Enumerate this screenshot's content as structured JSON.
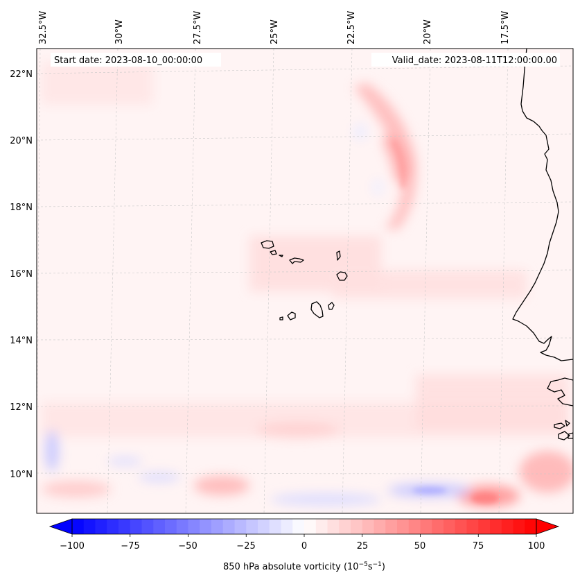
{
  "map": {
    "start_label": "Start date: 2023-08-10_00:00:00",
    "valid_label": "Valid_date: 2023-08-11T12:00:00.00",
    "lon_labels": [
      "32.5°W",
      "30°W",
      "27.5°W",
      "25°W",
      "22.5°W",
      "20°W",
      "17.5°W"
    ],
    "lat_labels": [
      "22°N",
      "20°N",
      "18°N",
      "16°N",
      "14°N",
      "12°N",
      "10°N"
    ],
    "lon_values": [
      -32.5,
      -30,
      -27.5,
      -25,
      -22.5,
      -20,
      -17.5
    ],
    "lat_values": [
      22,
      20,
      18,
      16,
      14,
      12,
      10
    ],
    "lon_range": [
      -33,
      -16
    ],
    "lat_range": [
      9,
      22.7
    ],
    "gridlines": true
  },
  "colorbar": {
    "label": "850 hPa absolute vorticity (10",
    "exp1": "−5",
    "unit_mid": "s",
    "exp2": "−1",
    "label_end": ")",
    "range": [
      -100,
      100
    ],
    "tick_labels": [
      "−100",
      "−75",
      "−50",
      "−25",
      "0",
      "25",
      "50",
      "75",
      "100"
    ],
    "tick_values": [
      -100,
      -75,
      -50,
      -25,
      0,
      25,
      50,
      75,
      100
    ],
    "extend": "both",
    "cmap": "bwr",
    "neg_color": "#0000ff",
    "pos_color": "#ff0000",
    "mid_color": "#ffffff"
  }
}
